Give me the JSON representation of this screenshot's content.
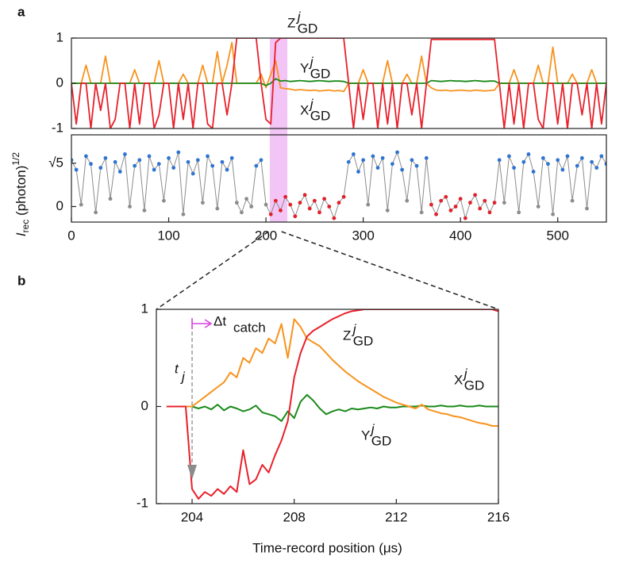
{
  "panel_labels": [
    "a",
    "b"
  ],
  "chart_data": [
    {
      "type": "line",
      "xlim": [
        0,
        550
      ],
      "ylim": [
        -1,
        1
      ],
      "yticks": [
        -1,
        0,
        1
      ],
      "highlight": [
        204,
        222
      ],
      "highlight_color": "#f3c4f6",
      "x": [
        0,
        5,
        10,
        15,
        20,
        25,
        30,
        35,
        40,
        45,
        50,
        55,
        60,
        65,
        70,
        75,
        80,
        85,
        90,
        95,
        100,
        105,
        110,
        115,
        120,
        125,
        130,
        135,
        140,
        145,
        150,
        155,
        160,
        165,
        170,
        175,
        180,
        185,
        190,
        195,
        200,
        205,
        210,
        215,
        220,
        225,
        230,
        235,
        240,
        245,
        250,
        255,
        260,
        265,
        270,
        275,
        280,
        285,
        290,
        295,
        300,
        305,
        310,
        315,
        320,
        325,
        330,
        335,
        340,
        345,
        350,
        355,
        360,
        365,
        370,
        375,
        380,
        385,
        390,
        395,
        400,
        405,
        410,
        415,
        420,
        425,
        430,
        435,
        440,
        445,
        450,
        455,
        460,
        465,
        470,
        475,
        480,
        485,
        490,
        495,
        500,
        505,
        510,
        515,
        520,
        525,
        530,
        535,
        540,
        545,
        550
      ],
      "series": [
        {
          "name": "X",
          "sup": "j",
          "sub": "GD",
          "color": "#f7931e",
          "values": [
            0,
            0,
            0,
            0.4,
            0,
            0,
            0,
            0.6,
            0,
            0,
            0,
            0,
            0,
            0.3,
            0,
            0,
            0,
            0,
            0.5,
            0,
            0,
            0,
            0,
            0.2,
            0,
            0,
            0,
            0.4,
            0,
            0,
            0.7,
            0,
            0.4,
            0.9,
            0,
            0,
            0,
            0,
            0,
            0.2,
            -0.1,
            0.2,
            0.5,
            -0.1,
            -0.12,
            -0.13,
            -0.15,
            -0.14,
            -0.15,
            -0.16,
            -0.15,
            -0.17,
            -0.16,
            -0.15,
            -0.17,
            -0.16,
            -0.18,
            0,
            0,
            0,
            0.3,
            0,
            0,
            0,
            0,
            0.5,
            0,
            0,
            0,
            0.2,
            0,
            0,
            0.6,
            0,
            -0.1,
            -0.15,
            -0.16,
            -0.15,
            -0.17,
            -0.16,
            -0.15,
            -0.16,
            -0.17,
            -0.15,
            -0.16,
            -0.17,
            -0.16,
            -0.15,
            0,
            0,
            0,
            0.3,
            0,
            0,
            0,
            0,
            0.4,
            0,
            0,
            0.8,
            0,
            0,
            0,
            0.2,
            0,
            0,
            0,
            0.3,
            0,
            0,
            0
          ]
        },
        {
          "name": "Y",
          "sup": "j",
          "sub": "GD",
          "color": "#1a8a1a",
          "values": [
            0,
            0,
            0,
            0,
            0,
            0,
            0,
            0,
            0,
            0,
            0,
            0,
            0,
            0,
            0,
            0,
            0,
            0,
            0,
            0,
            0,
            0,
            0,
            0,
            0,
            0,
            0,
            0,
            0,
            0,
            0,
            0,
            0,
            0,
            0,
            0,
            0,
            0,
            0,
            0,
            -0.05,
            0,
            0.1,
            0.05,
            0.06,
            0.04,
            0.05,
            0.06,
            0.05,
            0.04,
            0.05,
            0.06,
            0.05,
            0.04,
            0.05,
            0.05,
            0.04,
            0,
            0,
            0,
            0,
            0,
            0,
            0,
            0,
            0,
            0,
            0,
            0,
            0,
            0,
            0,
            0,
            0,
            0.06,
            0.05,
            0.04,
            0.05,
            0.06,
            0.05,
            0.05,
            0.04,
            0.05,
            0.06,
            0.05,
            0.04,
            0.05,
            0.05,
            0,
            0,
            0,
            0,
            0,
            0,
            0,
            0,
            0,
            0,
            0,
            0,
            0,
            0,
            0,
            0,
            0,
            0,
            0,
            0,
            0,
            0,
            0
          ]
        },
        {
          "name": "Z",
          "sup": "j",
          "sub": "GD",
          "color": "#e8202a",
          "values": [
            0,
            -0.9,
            0,
            0,
            -1,
            0,
            -0.6,
            0,
            -1,
            -0.8,
            0,
            0,
            -1,
            0,
            -0.9,
            0,
            0,
            -1,
            -0.7,
            0,
            0,
            -1,
            0,
            -0.8,
            0,
            -1,
            0,
            0,
            -0.9,
            -1,
            0,
            0,
            -0.7,
            0,
            1,
            1,
            1,
            1,
            1,
            0,
            -0.8,
            -0.9,
            0.9,
            1,
            1,
            1,
            1,
            1,
            1,
            1,
            1,
            1,
            1,
            1,
            1,
            1,
            1,
            0,
            -1,
            0,
            -0.8,
            0,
            0,
            -1,
            0,
            -0.9,
            0,
            -1,
            0,
            0,
            -0.7,
            0,
            -1,
            0,
            0.97,
            0.97,
            0.97,
            0.97,
            0.97,
            0.97,
            0.97,
            0.97,
            0.97,
            0.97,
            0.97,
            0.97,
            0.97,
            0.97,
            0,
            -1,
            0,
            -0.9,
            0,
            -1,
            0,
            0,
            -0.8,
            -1,
            0,
            0,
            -0.9,
            0,
            -1,
            0,
            0,
            -0.7,
            0,
            -1,
            0,
            -0.9,
            0
          ]
        }
      ]
    },
    {
      "type": "scatter",
      "xlim": [
        0,
        550
      ],
      "ylim": [
        -0.8,
        3.7
      ],
      "xticks": [
        0,
        100,
        200,
        300,
        400,
        500
      ],
      "yticks": [
        0,
        {
          "value": 2.236,
          "label": "√5"
        }
      ],
      "ylabel": {
        "text": "I",
        "sub": "rec",
        "rest": " (photon)",
        "sup": "1/2"
      },
      "x": [
        0,
        5,
        10,
        15,
        20,
        25,
        30,
        35,
        40,
        45,
        50,
        55,
        60,
        65,
        70,
        75,
        80,
        85,
        90,
        95,
        100,
        105,
        110,
        115,
        120,
        125,
        130,
        135,
        140,
        145,
        150,
        155,
        160,
        165,
        170,
        175,
        180,
        185,
        190,
        195,
        200,
        205,
        210,
        215,
        220,
        225,
        230,
        235,
        240,
        245,
        250,
        255,
        260,
        265,
        270,
        275,
        280,
        285,
        290,
        295,
        300,
        305,
        310,
        315,
        320,
        325,
        330,
        335,
        340,
        345,
        350,
        355,
        360,
        365,
        370,
        375,
        380,
        385,
        390,
        395,
        400,
        405,
        410,
        415,
        420,
        425,
        430,
        435,
        440,
        445,
        450,
        455,
        460,
        465,
        470,
        475,
        480,
        485,
        490,
        495,
        500,
        505,
        510,
        515,
        520,
        525,
        530,
        535,
        540,
        545,
        550
      ],
      "series": [
        {
          "color": "#8c8c8c",
          "values": [
            2.4,
            1.9,
            0.1,
            2.6,
            2.2,
            -0.3,
            2.0,
            2.5,
            0.4,
            2.3,
            1.8,
            2.7,
            0,
            2.1,
            2.4,
            -0.2,
            2.6,
            1.9,
            2.2,
            0.3,
            2.5,
            2.0,
            2.8,
            -0.4,
            2.3,
            1.7,
            2.4,
            0.2,
            2.6,
            2.1,
            -0.1,
            2.3,
            1.9,
            2.5,
            0.2,
            -0.3,
            0.4,
            0.0,
            2.1,
            2.4,
            0.1,
            -0.4,
            0.3,
            -0.2,
            0.5,
            0.1,
            -0.5,
            0.2,
            0.6,
            -0.1,
            0.3,
            -0.3,
            0.4,
            0.0,
            -0.6,
            0.2,
            0.5,
            2.3,
            2.7,
            1.8,
            2.4,
            0.1,
            2.6,
            2.0,
            2.5,
            -0.2,
            2.2,
            2.8,
            1.9,
            0.3,
            2.4,
            2.1,
            -0.3,
            2.5,
            0.1,
            -0.4,
            0.3,
            0.5,
            -0.2,
            0.0,
            0.4,
            -0.6,
            0.2,
            0.6,
            -0.1,
            0.3,
            -0.3,
            0.2,
            2.4,
            0.2,
            2.6,
            2.0,
            -0.3,
            2.3,
            2.7,
            1.8,
            0.0,
            2.5,
            2.2,
            -0.4,
            2.4,
            1.9,
            2.6,
            0.3,
            2.1,
            2.5,
            -0.1,
            2.3,
            2.0,
            2.6,
            2.2
          ],
          "point_colors": [
            "#2f74d0",
            "#2f74d0",
            "#8c8c8c",
            "#2f74d0",
            "#2f74d0",
            "#8c8c8c",
            "#2f74d0",
            "#2f74d0",
            "#8c8c8c",
            "#2f74d0",
            "#2f74d0",
            "#2f74d0",
            "#8c8c8c",
            "#2f74d0",
            "#2f74d0",
            "#8c8c8c",
            "#2f74d0",
            "#2f74d0",
            "#2f74d0",
            "#8c8c8c",
            "#2f74d0",
            "#2f74d0",
            "#2f74d0",
            "#8c8c8c",
            "#2f74d0",
            "#2f74d0",
            "#2f74d0",
            "#8c8c8c",
            "#2f74d0",
            "#2f74d0",
            "#8c8c8c",
            "#2f74d0",
            "#2f74d0",
            "#2f74d0",
            "#8c8c8c",
            "#8c8c8c",
            "#8c8c8c",
            "#8c8c8c",
            "#2f74d0",
            "#2f74d0",
            "#8c8c8c",
            "#e0202a",
            "#e0202a",
            "#e0202a",
            "#e0202a",
            "#e0202a",
            "#e0202a",
            "#e0202a",
            "#e0202a",
            "#e0202a",
            "#e0202a",
            "#e0202a",
            "#e0202a",
            "#e0202a",
            "#e0202a",
            "#e0202a",
            "#e0202a",
            "#2f74d0",
            "#2f74d0",
            "#2f74d0",
            "#2f74d0",
            "#8c8c8c",
            "#2f74d0",
            "#2f74d0",
            "#2f74d0",
            "#8c8c8c",
            "#2f74d0",
            "#2f74d0",
            "#2f74d0",
            "#8c8c8c",
            "#2f74d0",
            "#2f74d0",
            "#8c8c8c",
            "#2f74d0",
            "#e0202a",
            "#e0202a",
            "#e0202a",
            "#e0202a",
            "#e0202a",
            "#e0202a",
            "#e0202a",
            "#e0202a",
            "#e0202a",
            "#e0202a",
            "#e0202a",
            "#e0202a",
            "#e0202a",
            "#e0202a",
            "#2f74d0",
            "#8c8c8c",
            "#2f74d0",
            "#2f74d0",
            "#8c8c8c",
            "#2f74d0",
            "#2f74d0",
            "#2f74d0",
            "#8c8c8c",
            "#2f74d0",
            "#2f74d0",
            "#8c8c8c",
            "#2f74d0",
            "#2f74d0",
            "#2f74d0",
            "#8c8c8c",
            "#2f74d0",
            "#2f74d0",
            "#8c8c8c",
            "#2f74d0",
            "#2f74d0",
            "#2f74d0",
            "#2f74d0"
          ]
        }
      ]
    },
    {
      "type": "line",
      "xlim": [
        202.6,
        216
      ],
      "ylim": [
        -1,
        1
      ],
      "xticks": [
        204,
        208,
        212,
        216
      ],
      "yticks": [
        -1,
        0,
        1
      ],
      "xlabel": "Time-record position (μs)",
      "x": [
        203,
        203.25,
        203.5,
        203.75,
        204,
        204.25,
        204.5,
        204.75,
        205,
        205.25,
        205.5,
        205.75,
        206,
        206.25,
        206.5,
        206.75,
        207,
        207.25,
        207.5,
        207.75,
        208,
        208.25,
        208.5,
        208.75,
        209,
        209.25,
        209.5,
        209.75,
        210,
        210.25,
        210.5,
        210.75,
        211,
        211.25,
        211.5,
        211.75,
        212,
        212.25,
        212.5,
        212.75,
        213,
        213.25,
        213.5,
        213.75,
        214,
        214.25,
        214.5,
        214.75,
        215,
        215.25,
        215.5,
        215.75,
        216
      ],
      "annotations": [
        {
          "text": "t",
          "sub": "j",
          "x": 204,
          "color": "#8c8c8c"
        },
        {
          "text": "Δt",
          "sub": "catch",
          "color": "#d63fe0"
        }
      ],
      "series": [
        {
          "name": "Y",
          "sup": "j",
          "sub": "GD",
          "color": "#1a8a1a",
          "values": [
            0,
            0,
            0,
            0,
            0,
            -0.02,
            0,
            -0.03,
            0.02,
            -0.04,
            0,
            -0.02,
            -0.05,
            -0.03,
            0.01,
            -0.06,
            -0.08,
            -0.1,
            -0.15,
            -0.05,
            -0.12,
            0.05,
            0.12,
            0.06,
            -0.02,
            -0.08,
            -0.05,
            -0.03,
            -0.05,
            -0.02,
            -0.03,
            -0.02,
            -0.01,
            -0.02,
            0,
            -0.01,
            -0.01,
            0,
            0,
            0,
            0.01,
            0,
            0,
            0.01,
            0,
            0,
            0.01,
            0,
            0,
            0.01,
            0,
            0,
            0
          ]
        },
        {
          "name": "X",
          "sup": "j",
          "sub": "GD",
          "color": "#f7931e",
          "values": [
            0,
            0,
            0,
            0,
            0,
            0.05,
            0.1,
            0.15,
            0.2,
            0.25,
            0.35,
            0.3,
            0.5,
            0.45,
            0.6,
            0.55,
            0.7,
            0.65,
            0.85,
            0.5,
            0.9,
            0.82,
            0.7,
            0.66,
            0.62,
            0.55,
            0.48,
            0.42,
            0.36,
            0.31,
            0.26,
            0.22,
            0.18,
            0.14,
            0.1,
            0.07,
            0.04,
            0.02,
            0,
            -0.02,
            0.02,
            -0.03,
            -0.05,
            -0.07,
            -0.08,
            -0.1,
            -0.11,
            -0.13,
            -0.15,
            -0.17,
            -0.18,
            -0.2,
            -0.2
          ]
        },
        {
          "name": "Z",
          "sup": "j",
          "sub": "GD",
          "color": "#e8202a",
          "values": [
            0,
            0,
            0,
            0,
            -0.85,
            -0.95,
            -0.88,
            -0.92,
            -0.85,
            -0.9,
            -0.82,
            -0.88,
            -0.45,
            -0.8,
            -0.75,
            -0.6,
            -0.68,
            -0.5,
            -0.35,
            -0.15,
            0.3,
            0.55,
            0.72,
            0.78,
            0.82,
            0.86,
            0.9,
            0.93,
            0.96,
            0.98,
            0.99,
            1,
            1,
            1,
            1,
            1,
            1,
            1,
            1,
            1,
            1,
            1,
            1,
            1,
            1,
            1,
            1,
            1,
            1,
            1,
            1,
            1,
            0.98
          ]
        }
      ]
    }
  ]
}
